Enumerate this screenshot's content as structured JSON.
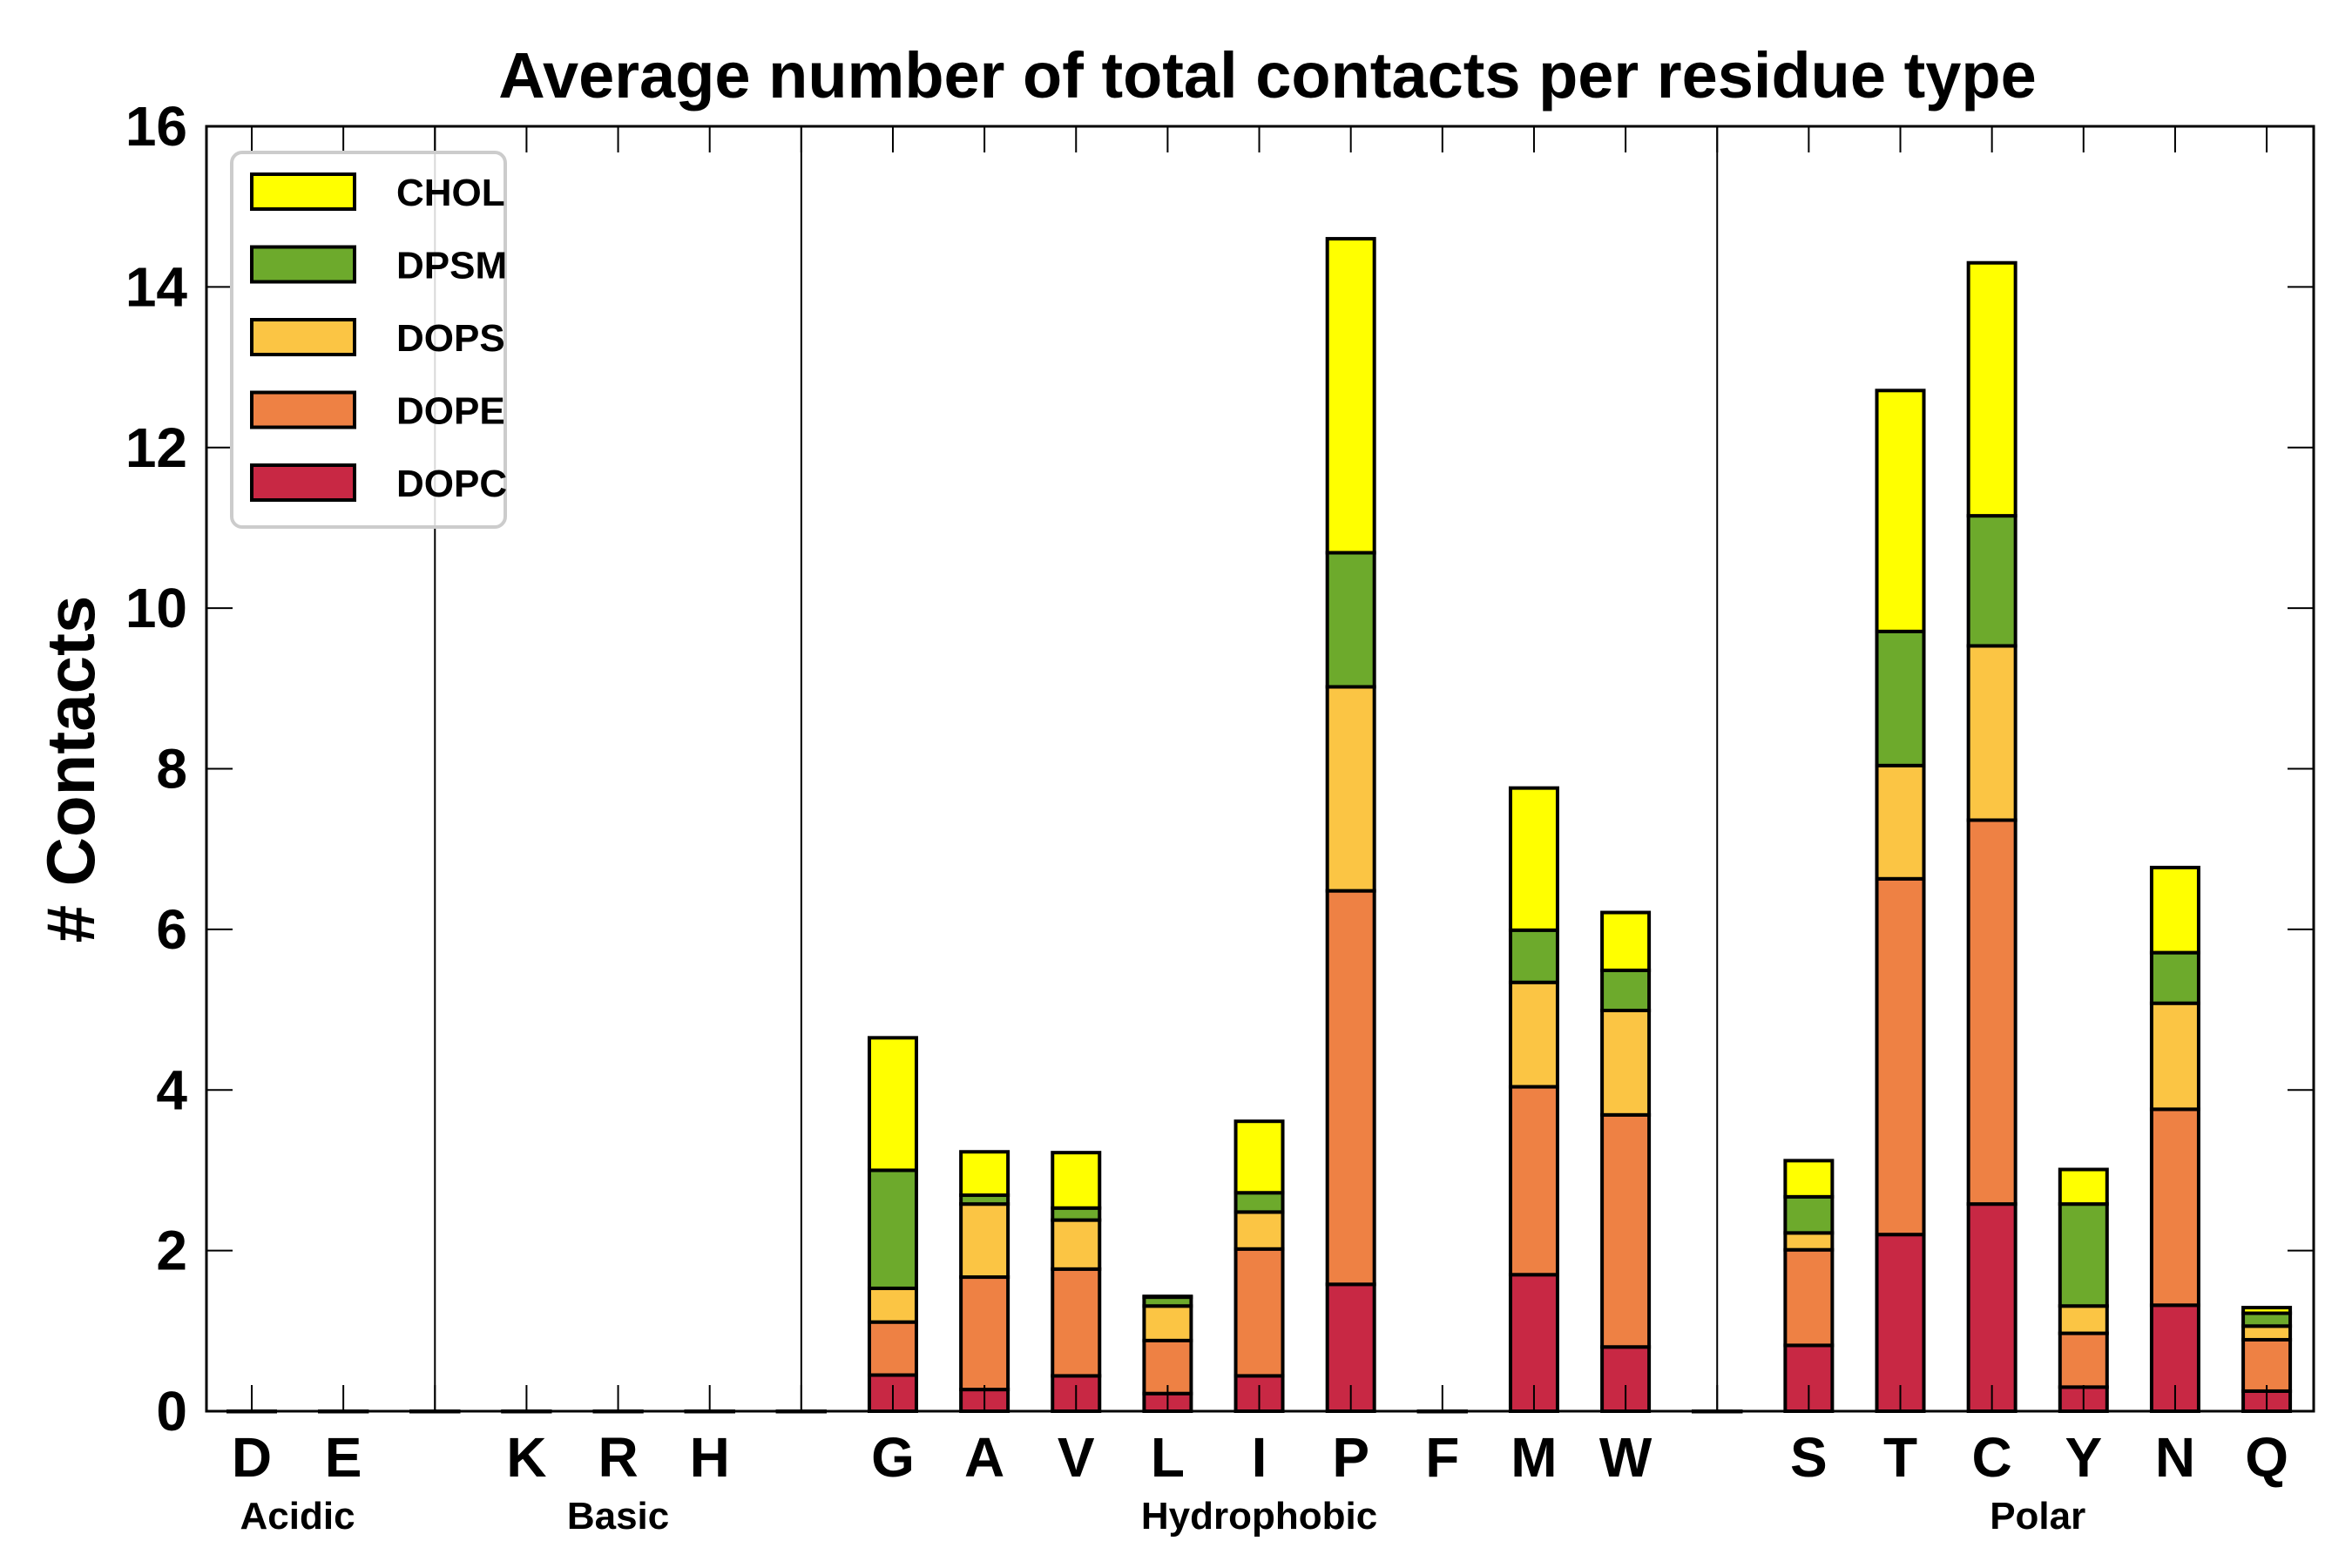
{
  "chart_data": {
    "type": "bar",
    "stacked": true,
    "title": "Average number of total contacts per residue type",
    "xlabel": "",
    "ylabel": "# Contacts",
    "ylim": [
      0,
      16
    ],
    "yticks": [
      0,
      2,
      4,
      6,
      8,
      10,
      12,
      14,
      16
    ],
    "grid": false,
    "legend_position": "top-left",
    "categories": [
      "D",
      "E",
      "",
      "K",
      "R",
      "H",
      "",
      "G",
      "A",
      "V",
      "L",
      "I",
      "P",
      "F",
      "M",
      "W",
      "",
      "S",
      "T",
      "C",
      "Y",
      "N",
      "Q"
    ],
    "groups": [
      {
        "label": "Acidic",
        "members": [
          "D",
          "E"
        ]
      },
      {
        "label": "Basic",
        "members": [
          "K",
          "R",
          "H"
        ]
      },
      {
        "label": "Hydrophobic",
        "members": [
          "G",
          "A",
          "V",
          "L",
          "I",
          "P",
          "F",
          "M",
          "W"
        ]
      },
      {
        "label": "Polar",
        "members": [
          "S",
          "T",
          "C",
          "Y",
          "N",
          "Q"
        ]
      }
    ],
    "separators_after": [
      "E",
      "H",
      "W"
    ],
    "series": [
      {
        "name": "DOPC",
        "color": "#C82844",
        "values": [
          0,
          0,
          0,
          0,
          0,
          0,
          0,
          0.45,
          0.27,
          0.44,
          0.22,
          0.44,
          1.58,
          0,
          1.7,
          0.8,
          0,
          0.82,
          2.2,
          2.58,
          0.3,
          1.32,
          0.25
        ]
      },
      {
        "name": "DOPE",
        "color": "#EE8144",
        "values": [
          0,
          0,
          0,
          0,
          0,
          0,
          0,
          0.66,
          1.4,
          1.33,
          0.66,
          1.58,
          4.9,
          0,
          2.34,
          2.89,
          0,
          1.19,
          4.43,
          4.78,
          0.67,
          2.44,
          0.64
        ]
      },
      {
        "name": "DOPS",
        "color": "#FBC544",
        "values": [
          0,
          0,
          0,
          0,
          0,
          0,
          0,
          0.42,
          0.91,
          0.61,
          0.43,
          0.46,
          2.54,
          0,
          1.3,
          1.3,
          0,
          0.21,
          1.41,
          2.17,
          0.34,
          1.32,
          0.17
        ]
      },
      {
        "name": "DPSM",
        "color": "#6DAA2C",
        "values": [
          0,
          0,
          0,
          0,
          0,
          0,
          0,
          1.47,
          0.11,
          0.15,
          0.11,
          0.24,
          1.67,
          0,
          0.65,
          0.5,
          0,
          0.45,
          1.67,
          1.62,
          1.27,
          0.63,
          0.16
        ]
      },
      {
        "name": "CHOL",
        "color": "#FFFF00",
        "values": [
          0,
          0,
          0,
          0,
          0,
          0,
          0,
          1.65,
          0.54,
          0.69,
          0.01,
          0.89,
          3.91,
          0,
          1.77,
          0.72,
          0,
          0.45,
          3.0,
          3.15,
          0.43,
          1.06,
          0.07
        ]
      }
    ],
    "legend_order": [
      "CHOL",
      "DPSM",
      "DOPS",
      "DOPE",
      "DOPC"
    ]
  }
}
